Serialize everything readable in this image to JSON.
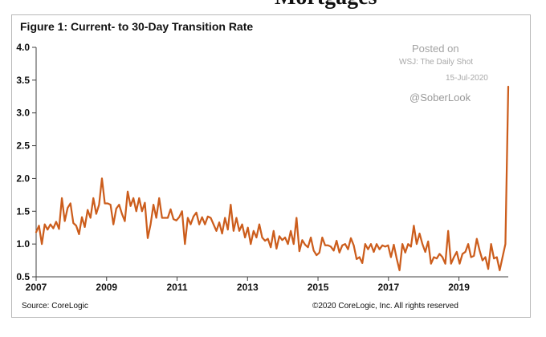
{
  "chart_data": {
    "type": "line",
    "title": "Figure 1: Current- to 30-Day Transition Rate",
    "xlabel": "",
    "ylabel": "",
    "xlim": [
      2007.0,
      2020.4
    ],
    "ylim": [
      0.5,
      4.0
    ],
    "grid": false,
    "legend": "none",
    "x_ticks": [
      "2007",
      "2009",
      "2011",
      "2013",
      "2015",
      "2017",
      "2019"
    ],
    "x_tick_values": [
      2007,
      2009,
      2011,
      2013,
      2015,
      2017,
      2019
    ],
    "y_ticks": [
      "0.5",
      "1.0",
      "1.5",
      "2.0",
      "2.5",
      "3.0",
      "3.5",
      "4.0"
    ],
    "y_tick_values": [
      0.5,
      1.0,
      1.5,
      2.0,
      2.5,
      3.0,
      3.5,
      4.0
    ],
    "series": [
      {
        "values": [
          1.18,
          1.28,
          1.0,
          1.3,
          1.22,
          1.3,
          1.24,
          1.34,
          1.23,
          1.7,
          1.35,
          1.55,
          1.62,
          1.32,
          1.28,
          1.15,
          1.41,
          1.26,
          1.52,
          1.4,
          1.7,
          1.46,
          1.6,
          2.0,
          1.62,
          1.62,
          1.6,
          1.3,
          1.54,
          1.6,
          1.46,
          1.35,
          1.8,
          1.58,
          1.7,
          1.5,
          1.7,
          1.5,
          1.63,
          1.09,
          1.3,
          1.6,
          1.4,
          1.7,
          1.4,
          1.4,
          1.4,
          1.53,
          1.38,
          1.36,
          1.41,
          1.5,
          1.0,
          1.4,
          1.3,
          1.42,
          1.48,
          1.3,
          1.41,
          1.3,
          1.42,
          1.4,
          1.3,
          1.2,
          1.33,
          1.16,
          1.4,
          1.22,
          1.6,
          1.2,
          1.4,
          1.2,
          1.3,
          1.1,
          1.25,
          1.0,
          1.2,
          1.1,
          1.3,
          1.1,
          1.05,
          1.08,
          0.95,
          1.2,
          0.93,
          1.12,
          1.06,
          1.1,
          1.0,
          1.2,
          1.0,
          1.4,
          0.89,
          1.06,
          0.99,
          0.95,
          1.1,
          0.9,
          0.83,
          0.87,
          1.1,
          0.98,
          0.98,
          0.96,
          0.9,
          1.05,
          0.87,
          0.98,
          1.0,
          0.92,
          1.09,
          0.98,
          0.77,
          0.8,
          0.71,
          1.0,
          0.92,
          1.0,
          0.88,
          1.0,
          0.92,
          0.98,
          0.96,
          0.98,
          0.8,
          0.99,
          0.78,
          0.6,
          1.0,
          0.87,
          1.0,
          0.96,
          1.28,
          1.0,
          1.16,
          1.0,
          0.88,
          1.04,
          0.7,
          0.8,
          0.78,
          0.85,
          0.8,
          0.7,
          1.2,
          0.7,
          0.8,
          0.88,
          0.7,
          0.85,
          0.88,
          1.0,
          0.8,
          0.82,
          1.08,
          0.9,
          0.75,
          0.8,
          0.62,
          1.0,
          0.78,
          0.8,
          0.6,
          0.8,
          1.0,
          3.4
        ]
      }
    ],
    "line_color": "#cc5d1c",
    "frame_color": "#404040"
  },
  "page": {
    "top_partial_text": "Mortgages"
  },
  "watermark": {
    "posted": "Posted on",
    "source": "WSJ: The Daily Shot",
    "date": "15-Jul-2020",
    "handle": "@SoberLook"
  },
  "footer": {
    "source": "Source: CoreLogic",
    "copyright": "©2020 CoreLogic, Inc. All rights reserved"
  }
}
